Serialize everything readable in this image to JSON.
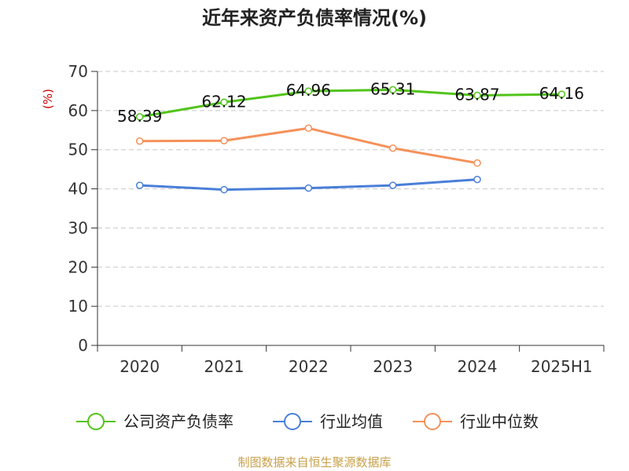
{
  "chart_data": {
    "type": "line",
    "title": "近年来资产负债率情况(%)",
    "ylabel": "(%)",
    "xlabel": "",
    "ylim": [
      0,
      70
    ],
    "yticks": [
      0,
      10,
      20,
      30,
      40,
      50,
      60,
      70
    ],
    "categories": [
      "2020",
      "2021",
      "2022",
      "2023",
      "2024",
      "2025H1"
    ],
    "grid": true,
    "legend_position": "bottom",
    "series": [
      {
        "name": "公司资产负债率",
        "color": "#52c41a",
        "show_labels": true,
        "values": [
          58.39,
          62.12,
          64.96,
          65.31,
          63.87,
          64.16
        ],
        "labels": [
          "58.39",
          "62.12",
          "64.96",
          "65.31",
          "63.87",
          "64.16"
        ]
      },
      {
        "name": "行业均值",
        "color": "#4a7fd8",
        "show_labels": false,
        "values": [
          40.9,
          39.8,
          40.2,
          40.9,
          42.4,
          null
        ]
      },
      {
        "name": "行业中位数",
        "color": "#f5915a",
        "show_labels": false,
        "values": [
          52.2,
          52.3,
          55.5,
          50.4,
          46.6,
          null
        ]
      }
    ]
  },
  "source_text": "制图数据来自恒生聚源数据库",
  "colors": {
    "unit_label": "#cc0000",
    "source": "#c8a04a",
    "axis": "#333333",
    "grid": "#c8c8c8"
  }
}
